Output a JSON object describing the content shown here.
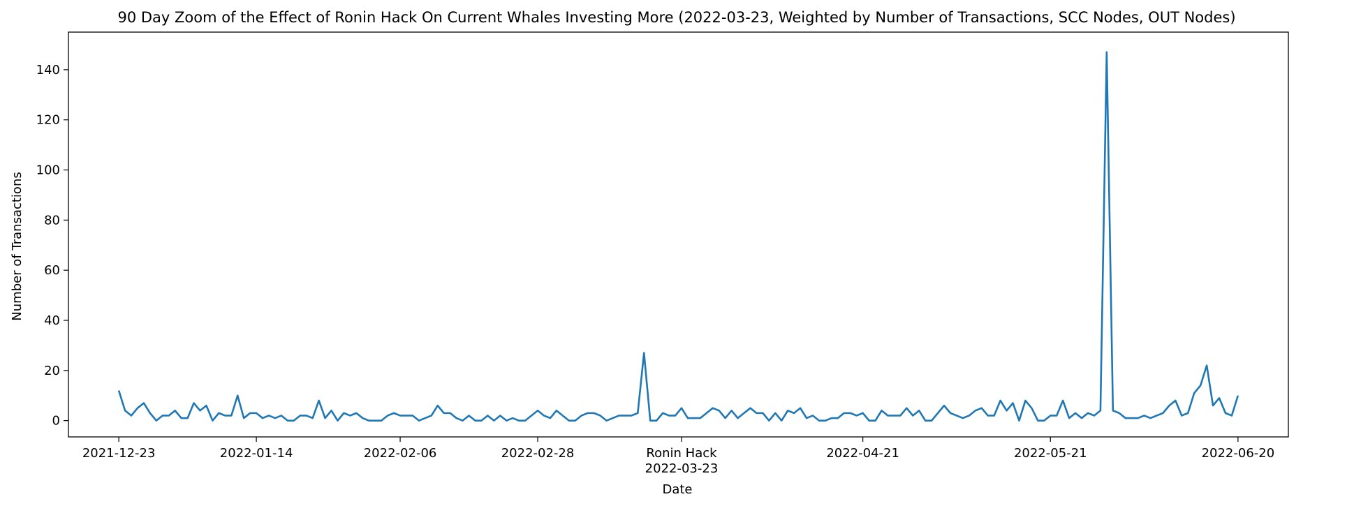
{
  "chart_data": {
    "type": "line",
    "title": "90 Day Zoom of the Effect of Ronin Hack On Current Whales Investing More (2022-03-23, Weighted by Number of Transactions, SCC Nodes, OUT Nodes)",
    "xlabel": "Date",
    "ylabel": "Number of Transactions",
    "x_start": "2021-12-23",
    "x_end": "2022-06-20",
    "ylim": [
      -6.5,
      155
    ],
    "yticks": [
      0,
      20,
      40,
      60,
      80,
      100,
      120,
      140
    ],
    "xticks": [
      {
        "date": "2021-12-23",
        "label": "2021-12-23"
      },
      {
        "date": "2022-01-14",
        "label": "2022-01-14"
      },
      {
        "date": "2022-02-06",
        "label": "2022-02-06"
      },
      {
        "date": "2022-02-28",
        "label": "2022-02-28"
      },
      {
        "date": "2022-03-23",
        "label": "Ronin Hack\n2022-03-23"
      },
      {
        "date": "2022-04-21",
        "label": "2022-04-21"
      },
      {
        "date": "2022-05-21",
        "label": "2022-05-21"
      },
      {
        "date": "2022-06-20",
        "label": "2022-06-20"
      }
    ],
    "grid": false,
    "line_color": "#1f77b4",
    "series": [
      {
        "values": [
          12,
          4,
          2,
          5,
          7,
          3,
          0,
          2,
          2,
          4,
          1,
          1,
          7,
          4,
          6,
          0,
          3,
          2,
          2,
          10,
          1,
          3,
          3,
          1,
          2,
          1,
          2,
          0,
          0,
          2,
          2,
          1,
          8,
          1,
          4,
          0,
          3,
          2,
          3,
          1,
          0,
          0,
          0,
          2,
          3,
          2,
          2,
          2,
          0,
          1,
          2,
          6,
          3,
          3,
          1,
          0,
          2,
          0,
          0,
          2,
          0,
          2,
          0,
          1,
          0,
          0,
          2,
          4,
          2,
          1,
          4,
          2,
          0,
          0,
          2,
          3,
          3,
          2,
          0,
          1,
          2,
          2,
          2,
          3,
          27,
          0,
          0,
          3,
          2,
          2,
          5,
          1,
          1,
          1,
          3,
          5,
          4,
          1,
          4,
          1,
          3,
          5,
          3,
          3,
          0,
          3,
          0,
          4,
          3,
          5,
          1,
          2,
          0,
          0,
          1,
          1,
          3,
          3,
          2,
          3,
          0,
          0,
          4,
          2,
          2,
          2,
          5,
          2,
          4,
          0,
          0,
          3,
          6,
          3,
          2,
          1,
          2,
          4,
          5,
          2,
          2,
          8,
          4,
          7,
          0,
          8,
          5,
          0,
          0,
          2,
          2,
          8,
          1,
          3,
          1,
          3,
          2,
          4,
          147,
          4,
          3,
          1,
          1,
          1,
          2,
          1,
          2,
          3,
          6,
          8,
          2,
          3,
          11,
          14,
          22,
          6,
          9,
          3,
          2,
          10
        ]
      }
    ]
  }
}
